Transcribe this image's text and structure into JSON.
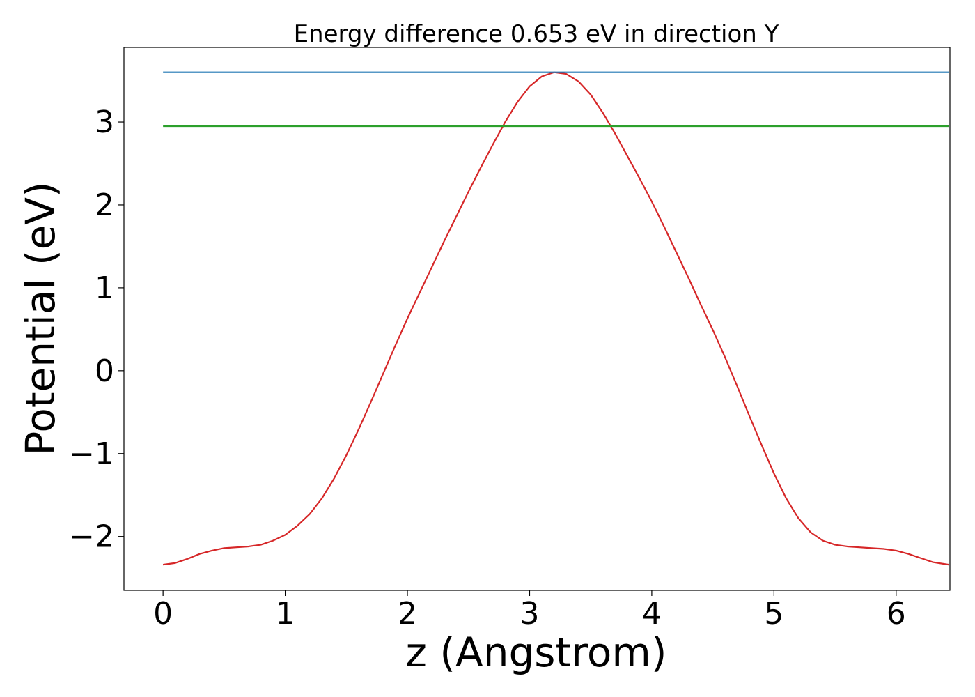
{
  "chart_data": {
    "type": "line",
    "title": "Energy difference 0.653 eV in direction Y",
    "xlabel": "z (Angstrom)",
    "ylabel": "Potential (eV)",
    "xlim": [
      -0.32,
      6.44
    ],
    "ylim": [
      -2.65,
      3.9
    ],
    "xticks": [
      0,
      1,
      2,
      3,
      4,
      5,
      6
    ],
    "xtick_labels": [
      "0",
      "1",
      "2",
      "3",
      "4",
      "5",
      "6"
    ],
    "yticks": [
      -2,
      -1,
      0,
      1,
      2,
      3
    ],
    "ytick_labels": [
      "−2",
      "−1",
      "0",
      "1",
      "2",
      "3"
    ],
    "grid": false,
    "series": [
      {
        "color": "#d62728",
        "x": [
          0,
          0.1,
          0.2,
          0.3,
          0.4,
          0.5,
          0.6,
          0.7,
          0.8,
          0.9,
          1.0,
          1.1,
          1.2,
          1.3,
          1.4,
          1.5,
          1.6,
          1.7,
          1.8,
          1.9,
          2.0,
          2.1,
          2.2,
          2.3,
          2.4,
          2.5,
          2.6,
          2.7,
          2.8,
          2.9,
          3.0,
          3.1,
          3.2,
          3.3,
          3.4,
          3.5,
          3.6,
          3.7,
          3.8,
          3.9,
          4.0,
          4.1,
          4.2,
          4.3,
          4.4,
          4.5,
          4.6,
          4.7,
          4.8,
          4.9,
          5.0,
          5.1,
          5.2,
          5.3,
          5.4,
          5.5,
          5.6,
          5.7,
          5.8,
          5.9,
          6.0,
          6.1,
          6.2,
          6.3,
          6.43
        ],
        "y": [
          -2.34,
          -2.32,
          -2.27,
          -2.21,
          -2.17,
          -2.14,
          -2.13,
          -2.12,
          -2.1,
          -2.05,
          -1.98,
          -1.87,
          -1.73,
          -1.54,
          -1.3,
          -1.02,
          -0.71,
          -0.38,
          -0.04,
          0.3,
          0.63,
          0.94,
          1.25,
          1.56,
          1.86,
          2.16,
          2.45,
          2.73,
          3.0,
          3.24,
          3.43,
          3.55,
          3.6,
          3.58,
          3.49,
          3.33,
          3.11,
          2.86,
          2.59,
          2.32,
          2.04,
          1.74,
          1.43,
          1.12,
          0.8,
          0.49,
          0.16,
          -0.19,
          -0.55,
          -0.9,
          -1.24,
          -1.54,
          -1.78,
          -1.95,
          -2.05,
          -2.1,
          -2.12,
          -2.13,
          -2.14,
          -2.15,
          -2.17,
          -2.21,
          -2.26,
          -2.31,
          -2.34
        ]
      },
      {
        "color": "#1f77b4",
        "x": [
          0,
          6.43
        ],
        "y": [
          3.6,
          3.6
        ]
      },
      {
        "color": "#2ca02c",
        "x": [
          0,
          6.43
        ],
        "y": [
          2.95,
          2.95
        ]
      }
    ]
  }
}
